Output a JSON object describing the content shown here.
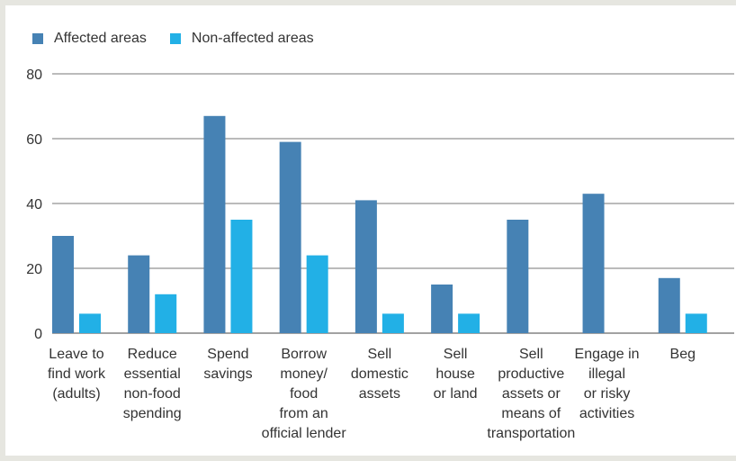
{
  "chart_data": {
    "type": "bar",
    "title": "",
    "xlabel": "",
    "ylabel": "",
    "ylim": [
      0,
      80
    ],
    "yticks": [
      0,
      20,
      40,
      60,
      80
    ],
    "grid": true,
    "legend_position": "top-left",
    "categories": [
      "Leave to find work (adults)",
      "Reduce essential non-food spending",
      "Spend savings",
      "Borrow money/ food from an official lender",
      "Sell domestic assets",
      "Sell house or land",
      "Sell productive assets or means of transportation",
      "Engage in illegal or risky activities",
      "Beg"
    ],
    "category_lines": [
      [
        "Leave to",
        "find work",
        "(adults)"
      ],
      [
        "Reduce",
        "essential",
        "non-food",
        "spending"
      ],
      [
        "Spend",
        "savings"
      ],
      [
        "Borrow",
        "money/",
        "food",
        "from an",
        "official lender"
      ],
      [
        "Sell",
        "domestic",
        "assets"
      ],
      [
        "Sell",
        "house",
        "or land"
      ],
      [
        "Sell",
        "productive",
        "assets or",
        "means of",
        "transportation"
      ],
      [
        "Engage in",
        "illegal",
        "or risky",
        "activities"
      ],
      [
        "Beg"
      ]
    ],
    "series": [
      {
        "name": "Affected areas",
        "color": "#4682b4",
        "values": [
          30,
          24,
          67,
          59,
          41,
          15,
          35,
          43,
          17
        ]
      },
      {
        "name": "Non-affected areas",
        "color": "#22b0e6",
        "values": [
          6,
          12,
          35,
          24,
          6,
          6,
          0,
          0,
          6
        ]
      }
    ]
  }
}
